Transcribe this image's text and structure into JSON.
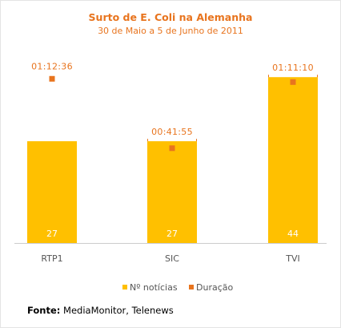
{
  "chart_data": {
    "type": "bar",
    "title": "Surto de E. Coli na Alemanha",
    "subtitle": "30 de Maio a 5 de Junho de 2011",
    "categories": [
      "RTP1",
      "SIC",
      "TVI"
    ],
    "series": [
      {
        "name": "Nº notícias",
        "type": "bar",
        "values": [
          27,
          27,
          44
        ],
        "color": "#ffc000"
      },
      {
        "name": "Duração",
        "type": "scatter",
        "values": [
          "01:12:36",
          "00:41:55",
          "01:11:10"
        ],
        "color": "#e8741e"
      }
    ],
    "ylim_count": [
      0,
      50
    ],
    "ylim_duration_seconds": [
      0,
      5000
    ],
    "grid": false,
    "legend": "bottom"
  },
  "source": {
    "label": "Fonte:",
    "text": "MediaMonitor, Telenews"
  }
}
